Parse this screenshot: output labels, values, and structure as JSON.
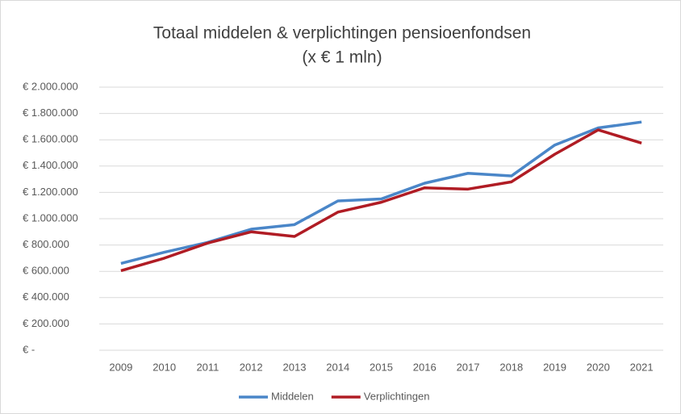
{
  "chart_data": {
    "type": "line",
    "title": "Totaal middelen & verplichtingen pensioenfondsen",
    "subtitle": "(x € 1 mln)",
    "categories": [
      "2009",
      "2010",
      "2011",
      "2012",
      "2013",
      "2014",
      "2015",
      "2016",
      "2017",
      "2018",
      "2019",
      "2020",
      "2021"
    ],
    "series": [
      {
        "name": "Middelen",
        "color": "#4a86c8",
        "values": [
          660000,
          745000,
          820000,
          920000,
          955000,
          1135000,
          1150000,
          1270000,
          1345000,
          1325000,
          1560000,
          1690000,
          1735000
        ]
      },
      {
        "name": "Verplichtingen",
        "color": "#b01c24",
        "values": [
          605000,
          700000,
          815000,
          900000,
          865000,
          1050000,
          1125000,
          1235000,
          1225000,
          1280000,
          1490000,
          1675000,
          1575000
        ]
      }
    ],
    "ylim": [
      0,
      2000000
    ],
    "yticks": [
      {
        "value": 0,
        "label": "€ -"
      },
      {
        "value": 200000,
        "label": "€ 200.000"
      },
      {
        "value": 400000,
        "label": "€ 400.000"
      },
      {
        "value": 600000,
        "label": "€ 600.000"
      },
      {
        "value": 800000,
        "label": "€ 800.000"
      },
      {
        "value": 1000000,
        "label": "€ 1.000.000"
      },
      {
        "value": 1200000,
        "label": "€ 1.200.000"
      },
      {
        "value": 1400000,
        "label": "€ 1.400.000"
      },
      {
        "value": 1600000,
        "label": "€ 1.600.000"
      },
      {
        "value": 1800000,
        "label": "€ 1.800.000"
      },
      {
        "value": 2000000,
        "label": "€ 2.000.000"
      }
    ],
    "grid": true,
    "legend": "bottom"
  }
}
